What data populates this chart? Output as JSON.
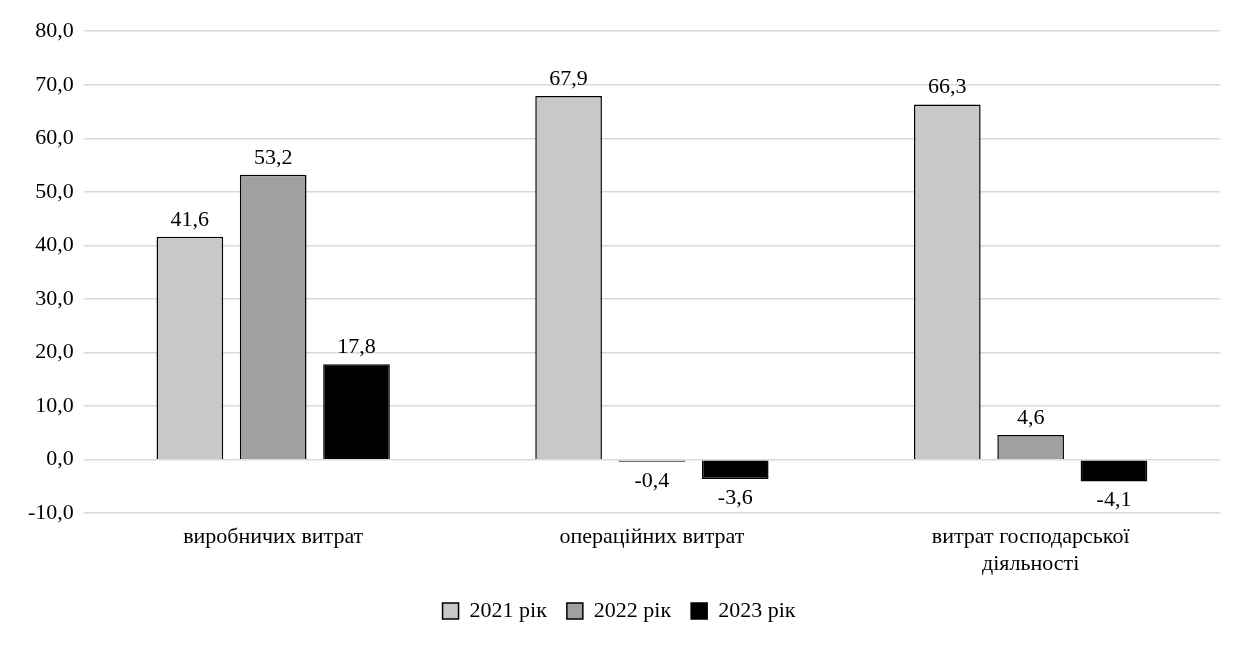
{
  "chart_data": {
    "type": "bar",
    "categories": [
      "виробничих витрат",
      "операційних витрат",
      "витрат господарської діяльності"
    ],
    "series": [
      {
        "name": "2021 рік",
        "color": "#c8c8c8",
        "values": [
          41.6,
          67.9,
          66.3
        ],
        "value_labels": [
          "41,6",
          "67,9",
          "66,3"
        ]
      },
      {
        "name": "2022 рік",
        "color": "#a0a0a0",
        "values": [
          53.2,
          -0.4,
          4.6
        ],
        "value_labels": [
          "53,2",
          "-0,4",
          "4,6"
        ]
      },
      {
        "name": "2023 рік",
        "color": "#000000",
        "values": [
          17.8,
          -3.6,
          -4.1
        ],
        "value_labels": [
          "17,8",
          "-3,6",
          "-4,1"
        ]
      }
    ],
    "ylim": [
      -10,
      80
    ],
    "yticks": [
      {
        "value": -10,
        "label": "-10,0"
      },
      {
        "value": 0,
        "label": "0,0"
      },
      {
        "value": 10,
        "label": "10,0"
      },
      {
        "value": 20,
        "label": "20,0"
      },
      {
        "value": 30,
        "label": "30,0"
      },
      {
        "value": 40,
        "label": "40,0"
      },
      {
        "value": 50,
        "label": "50,0"
      },
      {
        "value": 60,
        "label": "60,0"
      },
      {
        "value": 70,
        "label": "70,0"
      },
      {
        "value": 80,
        "label": "80,0"
      }
    ],
    "grid": "y",
    "legend": "bottom"
  }
}
